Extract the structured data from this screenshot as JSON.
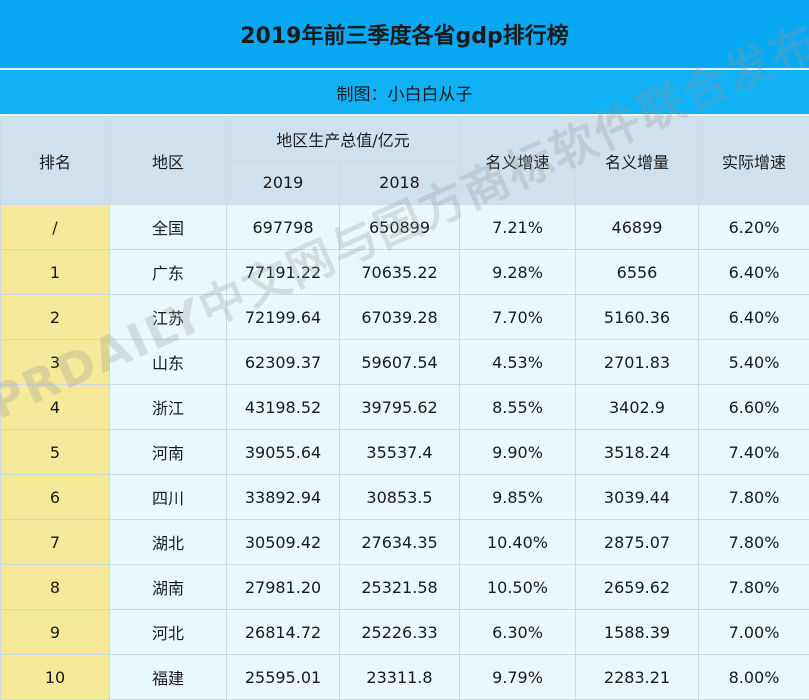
{
  "title": "2019年前三季度各省gdp排行榜",
  "subtitle": "制图：小白白从子",
  "headers": {
    "rank": "排名",
    "region": "地区",
    "gdp_group": "地区生产总值/亿元",
    "year_2019": "2019",
    "year_2018": "2018",
    "nominal_growth": "名义增速",
    "nominal_increase": "名义增量",
    "real_growth": "实际增速"
  },
  "rows": [
    {
      "rank": "/",
      "region": "全国",
      "gdp2019": "697798",
      "gdp2018": "650899",
      "nominal_growth": "7.21%",
      "nominal_increase": "46899",
      "real_growth": "6.20%"
    },
    {
      "rank": "1",
      "region": "广东",
      "gdp2019": "77191.22",
      "gdp2018": "70635.22",
      "nominal_growth": "9.28%",
      "nominal_increase": "6556",
      "real_growth": "6.40%"
    },
    {
      "rank": "2",
      "region": "江苏",
      "gdp2019": "72199.64",
      "gdp2018": "67039.28",
      "nominal_growth": "7.70%",
      "nominal_increase": "5160.36",
      "real_growth": "6.40%"
    },
    {
      "rank": "3",
      "region": "山东",
      "gdp2019": "62309.37",
      "gdp2018": "59607.54",
      "nominal_growth": "4.53%",
      "nominal_increase": "2701.83",
      "real_growth": "5.40%"
    },
    {
      "rank": "4",
      "region": "浙江",
      "gdp2019": "43198.52",
      "gdp2018": "39795.62",
      "nominal_growth": "8.55%",
      "nominal_increase": "3402.9",
      "real_growth": "6.60%"
    },
    {
      "rank": "5",
      "region": "河南",
      "gdp2019": "39055.64",
      "gdp2018": "35537.4",
      "nominal_growth": "9.90%",
      "nominal_increase": "3518.24",
      "real_growth": "7.40%"
    },
    {
      "rank": "6",
      "region": "四川",
      "gdp2019": "33892.94",
      "gdp2018": "30853.5",
      "nominal_growth": "9.85%",
      "nominal_increase": "3039.44",
      "real_growth": "7.80%"
    },
    {
      "rank": "7",
      "region": "湖北",
      "gdp2019": "30509.42",
      "gdp2018": "27634.35",
      "nominal_growth": "10.40%",
      "nominal_increase": "2875.07",
      "real_growth": "7.80%"
    },
    {
      "rank": "8",
      "region": "湖南",
      "gdp2019": "27981.20",
      "gdp2018": "25321.58",
      "nominal_growth": "10.50%",
      "nominal_increase": "2659.62",
      "real_growth": "7.80%"
    },
    {
      "rank": "9",
      "region": "河北",
      "gdp2019": "26814.72",
      "gdp2018": "25226.33",
      "nominal_growth": "6.30%",
      "nominal_increase": "1588.39",
      "real_growth": "7.00%"
    },
    {
      "rank": "10",
      "region": "福建",
      "gdp2019": "25595.01",
      "gdp2018": "23311.8",
      "nominal_growth": "9.79%",
      "nominal_increase": "2283.21",
      "real_growth": "8.00%"
    }
  ],
  "watermark": "IPRDAILY中文网与国方商标软件联合发布",
  "colors": {
    "title_bg": "#08a9f2",
    "header_bg": "#cfe0ef",
    "rank_bg": "#f6e99a",
    "row_bg": "#eaf8fd"
  }
}
